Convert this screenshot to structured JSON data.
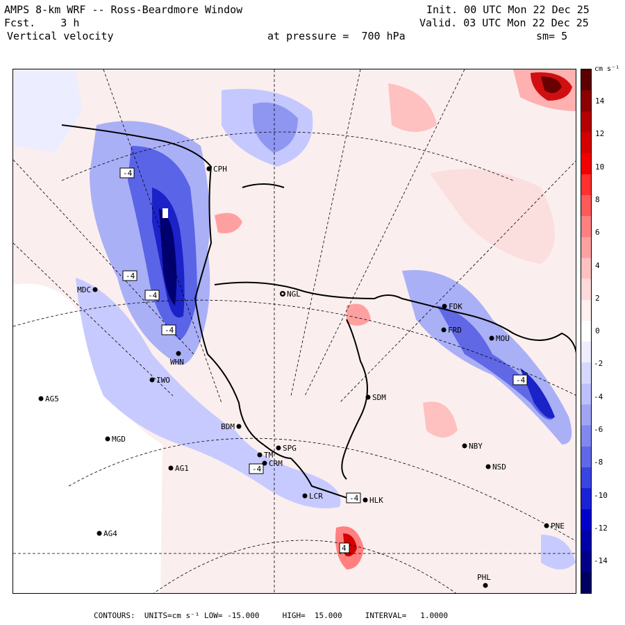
{
  "header": {
    "title": "AMPS 8-km WRF -- Ross-Beardmore Window",
    "forecast": "Fcst.    3 h",
    "field": "Vertical velocity",
    "init": "Init. 00 UTC Mon 22 Dec 25",
    "valid": "Valid. 03 UTC Mon 22 Dec 25",
    "pressure": "at pressure =  700 hPa",
    "smoothing": "sm= 5"
  },
  "colorbar": {
    "units": "cm s⁻¹",
    "ticks": [
      "14",
      "12",
      "10",
      "8",
      "6",
      "4",
      "2",
      "0",
      "-2",
      "-4",
      "-6",
      "-8",
      "-10",
      "-12",
      "-14"
    ],
    "colors": [
      "#5a0000",
      "#8b0000",
      "#b40000",
      "#d40000",
      "#f00000",
      "#ff3030",
      "#ff5a5a",
      "#ff8080",
      "#ffa0a0",
      "#ffc0c0",
      "#ffdada",
      "#ffefef",
      "#ffffff",
      "#eeeeff",
      "#d6d8ff",
      "#bcc0ff",
      "#a0a4f5",
      "#8088f0",
      "#6068e8",
      "#3a44e0",
      "#1a22d8",
      "#0000cc",
      "#0000a8",
      "#000088",
      "#000060"
    ]
  },
  "stations": [
    {
      "name": "CPH",
      "dot": "filled"
    },
    {
      "name": "NGL",
      "dot": "ring"
    },
    {
      "name": "MDC",
      "dot": "filled"
    },
    {
      "name": "FDK",
      "dot": "filled"
    },
    {
      "name": "FRD",
      "dot": "filled"
    },
    {
      "name": "MOU",
      "dot": "filled"
    },
    {
      "name": "WHN",
      "dot": "filled"
    },
    {
      "name": "IWO",
      "dot": "filled"
    },
    {
      "name": "AG5",
      "dot": "filled"
    },
    {
      "name": "SDM",
      "dot": "filled"
    },
    {
      "name": "MGD",
      "dot": "filled"
    },
    {
      "name": "BDM",
      "dot": "filled"
    },
    {
      "name": "SPG",
      "dot": "filled"
    },
    {
      "name": "TM",
      "dot": "filled"
    },
    {
      "name": "CRM",
      "dot": "filled"
    },
    {
      "name": "NBY",
      "dot": "filled"
    },
    {
      "name": "AG1",
      "dot": "filled"
    },
    {
      "name": "NSD",
      "dot": "filled"
    },
    {
      "name": "LCR",
      "dot": "filled"
    },
    {
      "name": "HLK",
      "dot": "filled"
    },
    {
      "name": "AG4",
      "dot": "filled"
    },
    {
      "name": "PNE",
      "dot": "filled"
    },
    {
      "name": "PHL",
      "dot": "filled"
    }
  ],
  "contour_labels": [
    "-4",
    "-4",
    "-4",
    "-4",
    "-4",
    "-4",
    "-4",
    "4"
  ],
  "footer": {
    "contours_label": "CONTOURS:",
    "units_label": "UNITS=cm s⁻¹",
    "low": "LOW= -15.000",
    "high": "HIGH=  15.000",
    "interval": "INTERVAL=   1.0000"
  }
}
